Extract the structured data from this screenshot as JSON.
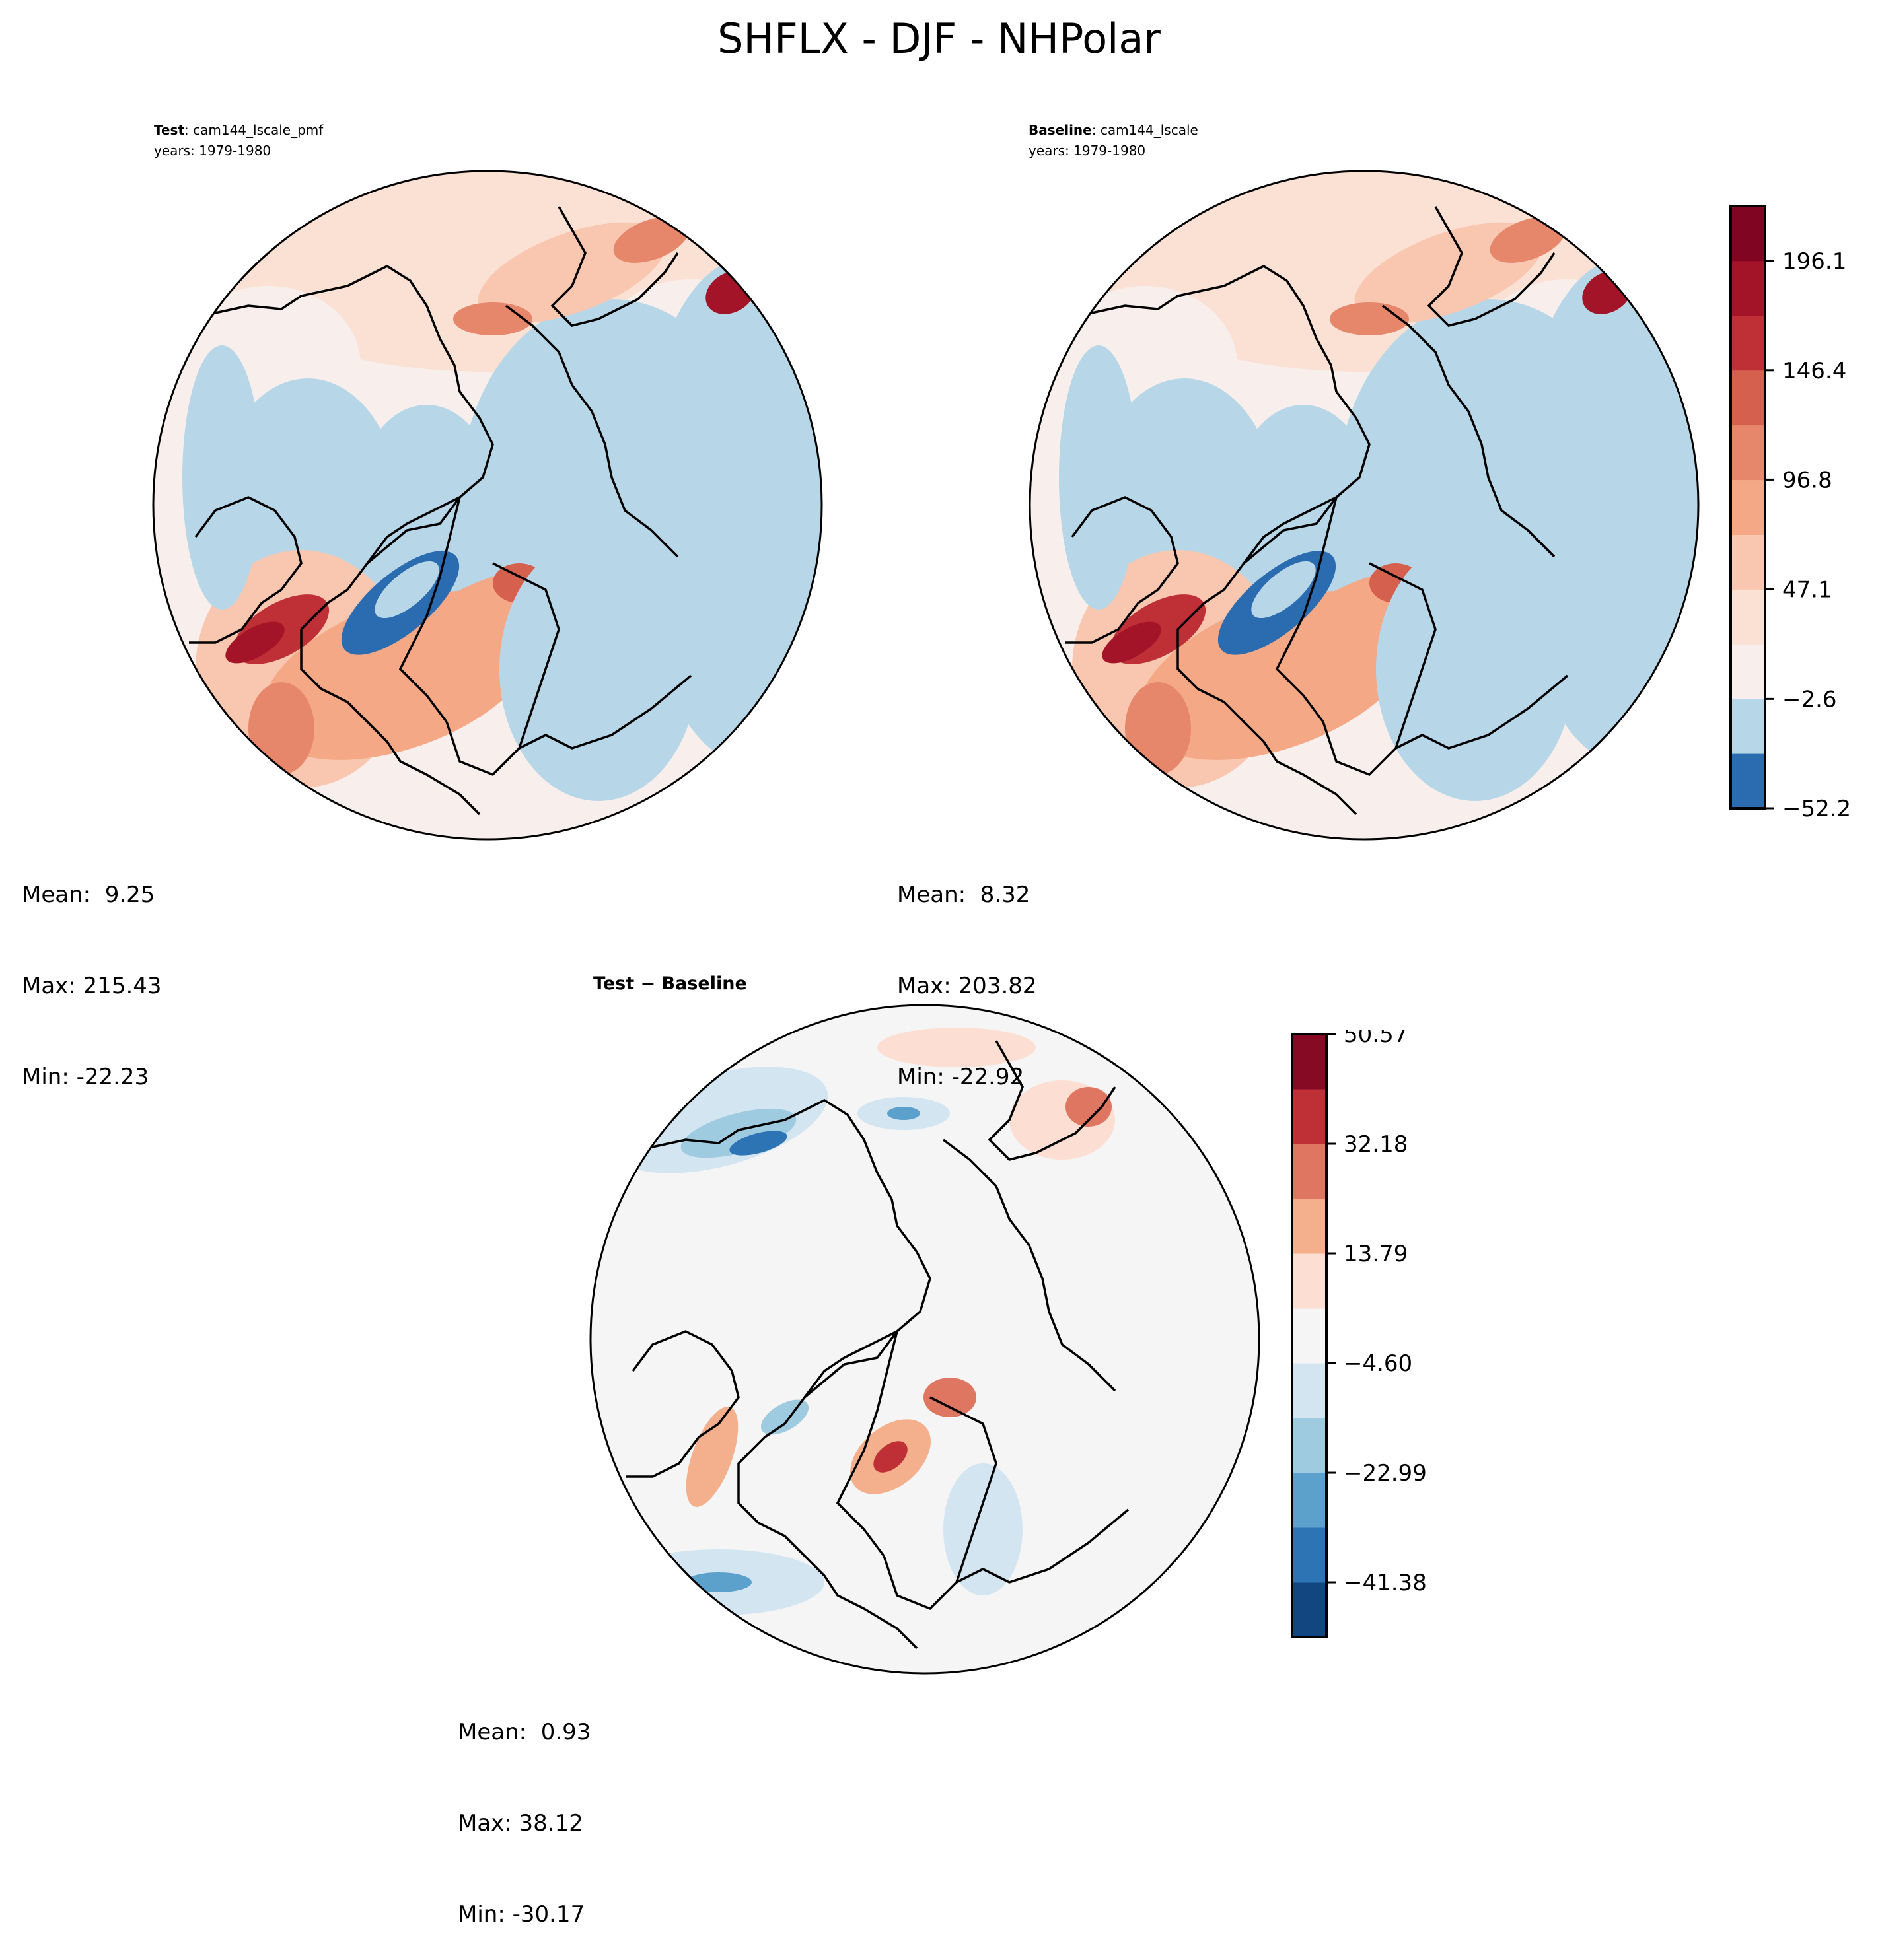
{
  "title": "SHFLX - DJF - NHPolar",
  "chart_data": [
    {
      "type": "heatmap",
      "projection": "north-polar-stereographic",
      "name": "test",
      "label_bold": "Test",
      "label_rest": ": cam144_lscale_pmf",
      "years": "years: 1979-1980",
      "stats": {
        "mean": "Mean:  9.25",
        "max": "Max: 215.43",
        "min": "Min: -22.23"
      }
    },
    {
      "type": "heatmap",
      "projection": "north-polar-stereographic",
      "name": "baseline",
      "label_bold": "Baseline",
      "label_rest": ": cam144_lscale",
      "years": "years: 1979-1980",
      "stats": {
        "mean": "Mean:  8.32",
        "max": "Max: 203.82",
        "min": "Min: -22.92"
      }
    },
    {
      "type": "heatmap",
      "projection": "north-polar-stereographic",
      "name": "difference",
      "title": "Test − Baseline",
      "stats": {
        "mean": "Mean:  0.93",
        "max": "Max: 38.12",
        "min": "Min: -30.17"
      }
    }
  ],
  "colorbars": {
    "main": {
      "range": [
        -52.2,
        220.9
      ],
      "ticks": [
        "196.1",
        "146.4",
        "96.8",
        "47.1",
        "−2.6",
        "−52.2"
      ],
      "tick_values": [
        196.1,
        146.4,
        96.8,
        47.1,
        -2.6,
        -52.2
      ],
      "colors": [
        "#2b6cb0",
        "#b7d7e8",
        "#f8efec",
        "#fbe0d4",
        "#f9c6af",
        "#f4a886",
        "#e6866a",
        "#d5604d",
        "#be3036",
        "#a41429",
        "#7f0523"
      ]
    },
    "diff": {
      "range": [
        -50.57,
        50.57
      ],
      "ticks": [
        "50.57",
        "32.18",
        "13.79",
        "−4.60",
        "−22.99",
        "−41.38"
      ],
      "tick_values": [
        50.57,
        32.18,
        13.79,
        -4.6,
        -22.99,
        -41.38
      ],
      "colors": [
        "#124680",
        "#2c74b4",
        "#5ba1cb",
        "#9fcbe1",
        "#d3e5f1",
        "#f5f5f5",
        "#fcdfd2",
        "#f4af8d",
        "#df7661",
        "#be3036",
        "#870a24"
      ]
    }
  }
}
